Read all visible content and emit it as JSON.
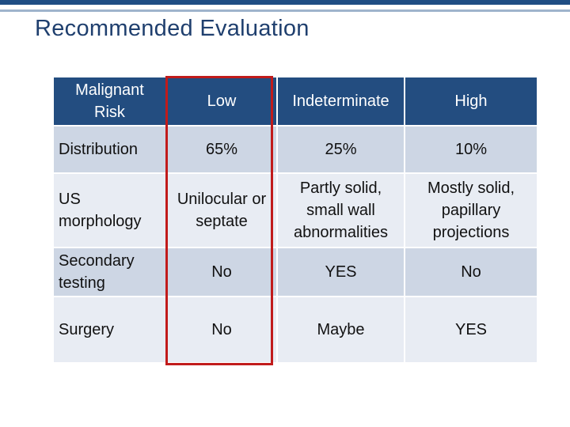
{
  "title": "Recommended Evaluation",
  "table": {
    "headers": [
      "Malignant Risk",
      "Low",
      "Indeterminate",
      "High"
    ],
    "rows": [
      [
        "Distribution",
        "65%",
        "25%",
        "10%"
      ],
      [
        "US morphology",
        "Unilocular or septate",
        "Partly solid, small wall abnormalities",
        "Mostly solid, papillary projections"
      ],
      [
        "Secondary testing",
        "No",
        "YES",
        "No"
      ],
      [
        "Surgery",
        "No",
        "Maybe",
        "YES"
      ]
    ]
  },
  "colors": {
    "header_bg": "#234d80",
    "title": "#1f3f6e",
    "highlight_border": "#c11b1b"
  }
}
